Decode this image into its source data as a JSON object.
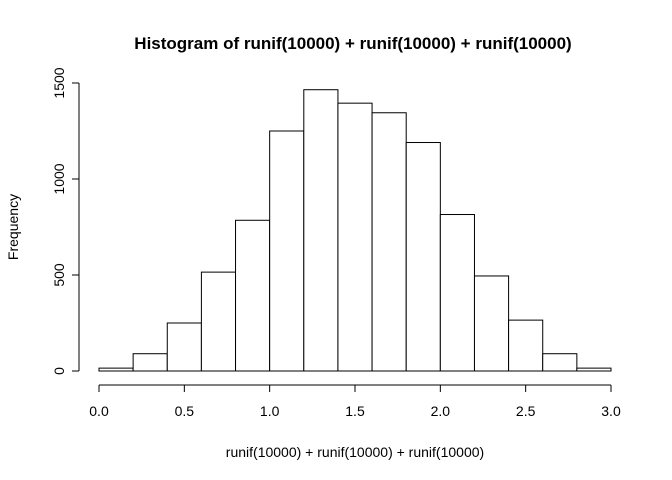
{
  "chart_data": {
    "type": "bar",
    "title": "Histogram of runif(10000) + runif(10000) + runif(10000)",
    "xlabel": "runif(10000) + runif(10000) + runif(10000)",
    "ylabel": "Frequency",
    "bin_edges": [
      0.0,
      0.2,
      0.4,
      0.6,
      0.8,
      1.0,
      1.2,
      1.4,
      1.6,
      1.8,
      2.0,
      2.2,
      2.4,
      2.6,
      2.8,
      3.0
    ],
    "values": [
      15,
      90,
      250,
      515,
      785,
      1250,
      1465,
      1395,
      1345,
      1190,
      815,
      495,
      265,
      90,
      15
    ],
    "xlim": [
      0.0,
      3.0
    ],
    "ylim": [
      0,
      1500
    ],
    "x_ticks": [
      0.0,
      0.5,
      1.0,
      1.5,
      2.0,
      2.5,
      3.0
    ],
    "x_tick_labels": [
      "0.0",
      "0.5",
      "1.0",
      "1.5",
      "2.0",
      "2.5",
      "3.0"
    ],
    "y_ticks": [
      0,
      500,
      1000,
      1500
    ],
    "y_tick_labels": [
      "0",
      "500",
      "1000",
      "1500"
    ],
    "grid": false,
    "bar_fill": "#ffffff",
    "bar_stroke": "#000000"
  }
}
